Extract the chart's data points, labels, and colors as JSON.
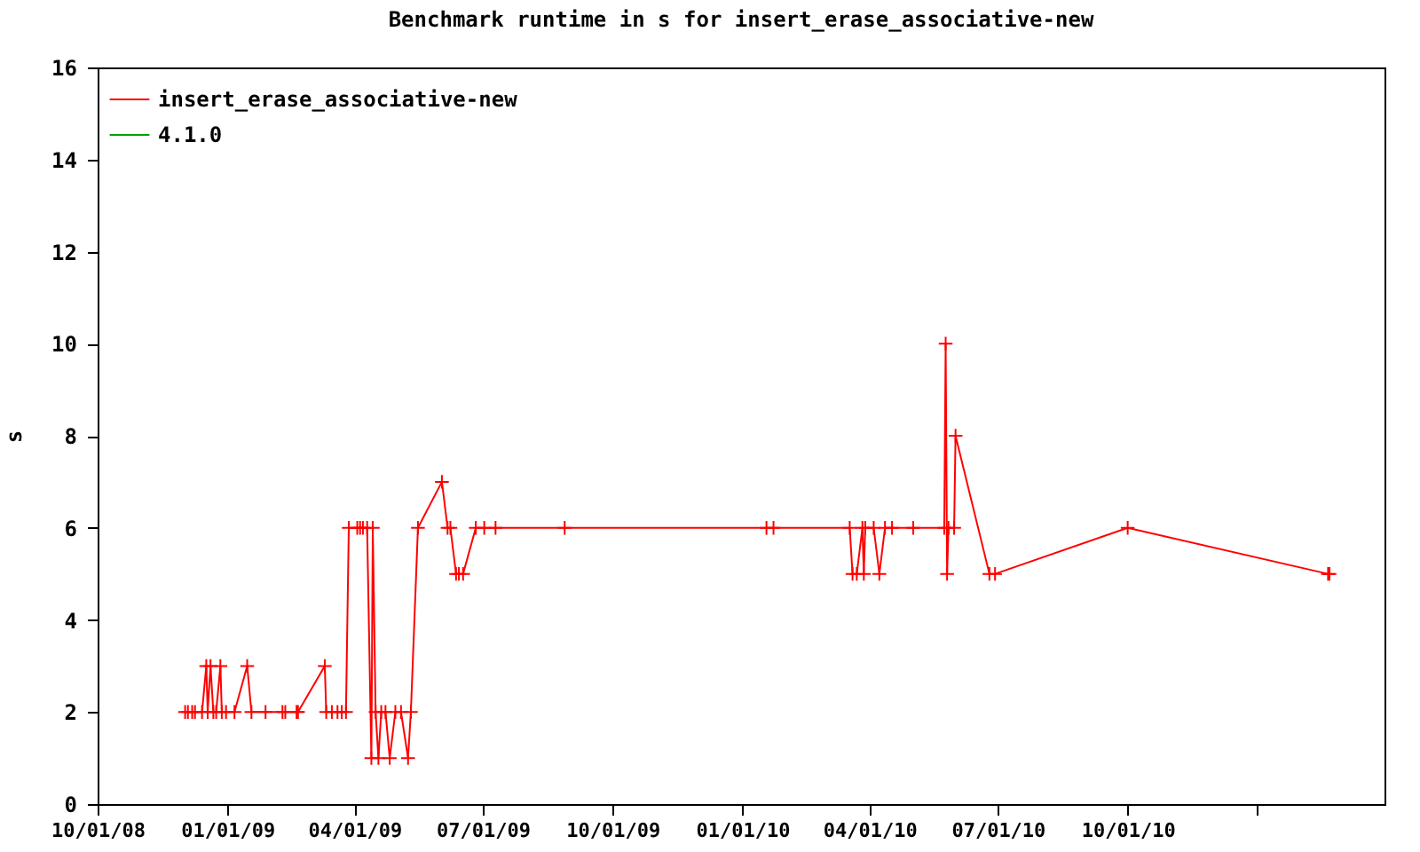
{
  "chart_data": {
    "type": "line",
    "title": "Benchmark runtime in s for insert_erase_associative-new",
    "ylabel": "s",
    "xlim": [
      "2008-10-01",
      "2011-04-01"
    ],
    "xticks": [
      {
        "value": "2008-10-01",
        "label": "10/01/08"
      },
      {
        "value": "2009-01-01",
        "label": "01/01/09"
      },
      {
        "value": "2009-04-01",
        "label": "04/01/09"
      },
      {
        "value": "2009-07-01",
        "label": "07/01/09"
      },
      {
        "value": "2009-10-01",
        "label": "10/01/09"
      },
      {
        "value": "2010-01-01",
        "label": "01/01/10"
      },
      {
        "value": "2010-04-01",
        "label": "04/01/10"
      },
      {
        "value": "2010-07-01",
        "label": "07/01/10"
      },
      {
        "value": "2010-10-01",
        "label": "10/01/10"
      },
      {
        "value": "2011-01-01",
        "label": null
      }
    ],
    "ylim": [
      0,
      16
    ],
    "yticks": [
      0,
      2,
      4,
      6,
      8,
      10,
      12,
      14,
      16
    ],
    "grid": false,
    "legend": "top left",
    "marker": "cross",
    "series": [
      {
        "name": "insert_erase_associative-new",
        "color": "#ff0000",
        "x": [
          "2008-12-02",
          "2008-12-04",
          "2008-12-07",
          "2008-12-09",
          "2008-12-14",
          "2008-12-17",
          "2008-12-18",
          "2008-12-20",
          "2008-12-22",
          "2008-12-24",
          "2008-12-27",
          "2008-12-28",
          "2008-12-31",
          "2009-01-06",
          "2009-01-15",
          "2009-01-18",
          "2009-01-28",
          "2009-02-09",
          "2009-02-11",
          "2009-02-19",
          "2009-02-20",
          "2009-03-11",
          "2009-03-12",
          "2009-03-16",
          "2009-03-20",
          "2009-03-23",
          "2009-03-26",
          "2009-03-28",
          "2009-04-03",
          "2009-04-05",
          "2009-04-07",
          "2009-04-10",
          "2009-04-13",
          "2009-04-14",
          "2009-04-16",
          "2009-04-18",
          "2009-04-20",
          "2009-04-23",
          "2009-04-26",
          "2009-04-30",
          "2009-05-04",
          "2009-05-09",
          "2009-05-11",
          "2009-05-16",
          "2009-06-02",
          "2009-06-06",
          "2009-06-08",
          "2009-06-12",
          "2009-06-14",
          "2009-06-17",
          "2009-06-26",
          "2009-07-02",
          "2009-07-10",
          "2009-08-28",
          "2010-01-18",
          "2010-01-23",
          "2010-03-18",
          "2010-03-20",
          "2010-03-23",
          "2010-03-27",
          "2010-03-28",
          "2010-03-29",
          "2010-04-04",
          "2010-04-08",
          "2010-04-12",
          "2010-04-17",
          "2010-05-02",
          "2010-05-24",
          "2010-05-25",
          "2010-05-26",
          "2010-05-27",
          "2010-05-31",
          "2010-06-01",
          "2010-06-25",
          "2010-06-29",
          "2010-10-01",
          "2011-02-20",
          "2011-02-21"
        ],
        "values": [
          2,
          2,
          2,
          2,
          2,
          3,
          2,
          3,
          2,
          2,
          3,
          2,
          2,
          2,
          3,
          2,
          2,
          2,
          2,
          2,
          2,
          3,
          2,
          2,
          2,
          2,
          2,
          6,
          6,
          6,
          6,
          6,
          1,
          6,
          2,
          1,
          2,
          2,
          1,
          2,
          2,
          1,
          2,
          6,
          7,
          6,
          6,
          5,
          5,
          5,
          6,
          6,
          6,
          6,
          6,
          6,
          6,
          5,
          5,
          6,
          5,
          6,
          6,
          5,
          6,
          6,
          6,
          6,
          10,
          5,
          6,
          6,
          8,
          5,
          5,
          6,
          5,
          5
        ]
      },
      {
        "name": "4.1.0",
        "color": "#00a000"
      }
    ]
  }
}
